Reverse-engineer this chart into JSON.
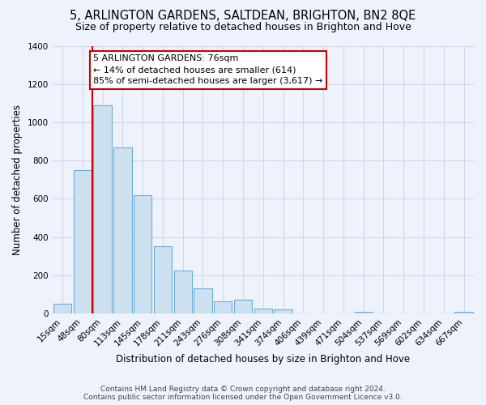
{
  "title": "5, ARLINGTON GARDENS, SALTDEAN, BRIGHTON, BN2 8QE",
  "subtitle": "Size of property relative to detached houses in Brighton and Hove",
  "xlabel": "Distribution of detached houses by size in Brighton and Hove",
  "ylabel": "Number of detached properties",
  "bar_labels": [
    "15sqm",
    "48sqm",
    "80sqm",
    "113sqm",
    "145sqm",
    "178sqm",
    "211sqm",
    "243sqm",
    "276sqm",
    "308sqm",
    "341sqm",
    "374sqm",
    "406sqm",
    "439sqm",
    "471sqm",
    "504sqm",
    "537sqm",
    "569sqm",
    "602sqm",
    "634sqm",
    "667sqm"
  ],
  "bar_values": [
    50,
    750,
    1090,
    870,
    620,
    350,
    225,
    130,
    65,
    70,
    25,
    20,
    0,
    0,
    0,
    10,
    0,
    0,
    0,
    0,
    10
  ],
  "bar_fill_color": "#cce0f0",
  "bar_edge_color": "#6baed6",
  "vline_color": "#cc0000",
  "vline_x": 1.5,
  "ylim": [
    0,
    1400
  ],
  "yticks": [
    0,
    200,
    400,
    600,
    800,
    1000,
    1200,
    1400
  ],
  "annotation_title": "5 ARLINGTON GARDENS: 76sqm",
  "annotation_line1": "← 14% of detached houses are smaller (614)",
  "annotation_line2": "85% of semi-detached houses are larger (3,617) →",
  "annotation_box_facecolor": "#ffffff",
  "annotation_box_edgecolor": "#cc0000",
  "footer_line1": "Contains HM Land Registry data © Crown copyright and database right 2024.",
  "footer_line2": "Contains public sector information licensed under the Open Government Licence v3.0.",
  "background_color": "#eef2fb",
  "grid_color": "#d0d8ee",
  "title_fontsize": 10.5,
  "subtitle_fontsize": 9,
  "axis_label_fontsize": 8.5,
  "tick_fontsize": 7.5,
  "annotation_fontsize": 8,
  "footer_fontsize": 6.5
}
